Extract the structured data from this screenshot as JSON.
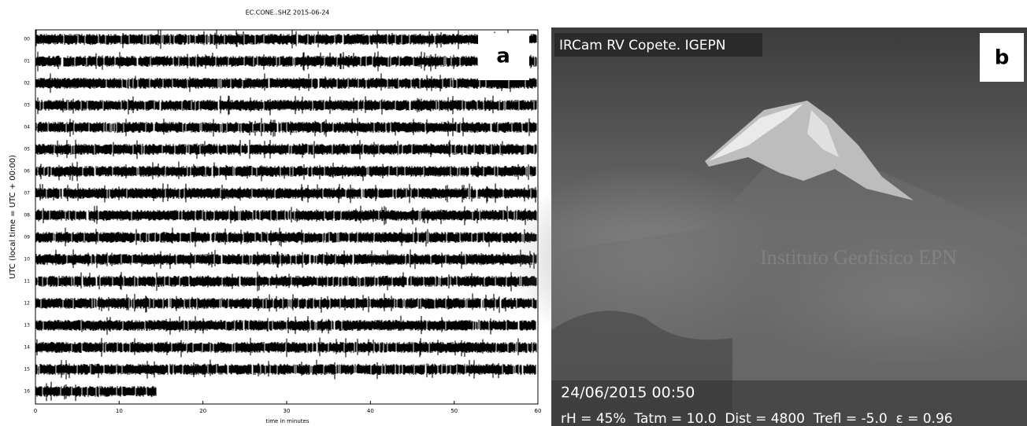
{
  "panel_a": {
    "title": "EC.CONE..SHZ 2015-06-24",
    "ylabel": "UTC (local time = UTC + 00:00)",
    "xlabel": "time in minutes",
    "xlim": [
      0,
      60
    ],
    "xticks": [
      0,
      10,
      20,
      30,
      40,
      50,
      60
    ],
    "yticks": [
      "00",
      "01",
      "02",
      "03",
      "04",
      "05",
      "06",
      "07",
      "08",
      "09",
      "10",
      "11",
      "12",
      "13",
      "14",
      "15",
      "16"
    ],
    "label": "a"
  },
  "panel_b": {
    "caption": "IRCam RV Copete. IGEPN",
    "label": "b",
    "watermark": "Instituto Geofisico EPN",
    "timestamp": "24/06/2015 00:50",
    "parameters": "rH = 45%  Tatm = 10.0  Dist = 4800  Trefl = -5.0  ε = 0.96"
  }
}
